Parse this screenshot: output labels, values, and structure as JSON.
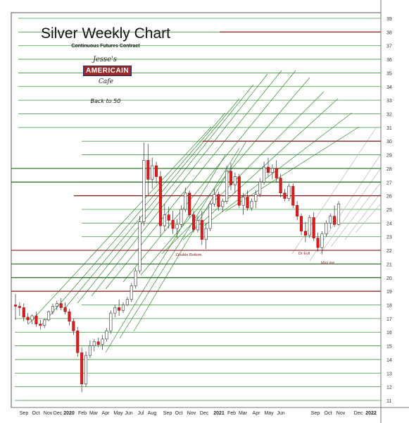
{
  "chart_data": {
    "type": "candlestick",
    "title": "Silver Weekly Chart",
    "subtitle": "Continuous Futures Contract",
    "logo_text": [
      "Jesse's",
      "AMERICAIN",
      "Cafe"
    ],
    "note": "Back to 50",
    "ylim": [
      11,
      39
    ],
    "yticks": [
      11,
      12,
      13,
      14,
      15,
      16,
      17,
      18,
      19,
      20,
      21,
      22,
      23,
      24,
      25,
      26,
      27,
      28,
      29,
      30,
      31,
      32,
      33,
      34,
      35,
      36,
      37,
      38,
      39
    ],
    "xlabels": [
      "Sep",
      "Oct",
      "Nov",
      "Dec",
      "2020",
      "Feb",
      "Mar",
      "Apr",
      "May",
      "Jun",
      "Jul",
      "Aug",
      "Sep",
      "Oct",
      "Nov",
      "Dec",
      "2021",
      "Feb",
      "Mar",
      "Apr",
      "May",
      "Jun",
      "Sep",
      "Oct",
      "Nov",
      "Dec",
      "2022"
    ],
    "annotations": [
      "Double Bottom",
      "Dr Evil",
      "Mini me"
    ],
    "hlines": [
      {
        "y": 38,
        "color": "#8b1a1a"
      },
      {
        "y": 30,
        "color": "#8b1a1a"
      },
      {
        "y": 26,
        "color": "#8b1a1a"
      },
      {
        "y": 22,
        "color": "#8b1a1a"
      },
      {
        "y": 19,
        "color": "#8b1a1a"
      },
      {
        "y": 21,
        "color": "#1f6e1f"
      },
      {
        "y": 20,
        "color": "#1f6e1f"
      },
      {
        "y": 28,
        "color": "#1f6e1f"
      },
      {
        "y": 27,
        "color": "#1f6e1f"
      }
    ],
    "candles": [
      [
        18.0,
        18.8,
        16.9,
        17.9
      ],
      [
        17.9,
        18.2,
        17.2,
        17.8
      ],
      [
        17.8,
        18.1,
        16.8,
        17.1
      ],
      [
        17.1,
        17.4,
        16.6,
        16.9
      ],
      [
        16.9,
        17.3,
        16.6,
        17.2
      ],
      [
        17.2,
        17.5,
        16.4,
        16.6
      ],
      [
        16.6,
        16.9,
        16.2,
        16.5
      ],
      [
        16.5,
        17.0,
        16.3,
        16.9
      ],
      [
        16.9,
        17.6,
        16.8,
        17.5
      ],
      [
        17.5,
        18.1,
        17.3,
        17.9
      ],
      [
        17.9,
        18.3,
        17.6,
        18.1
      ],
      [
        18.1,
        18.5,
        17.6,
        17.8
      ],
      [
        17.8,
        18.2,
        17.3,
        17.5
      ],
      [
        17.5,
        17.7,
        16.5,
        16.8
      ],
      [
        16.8,
        17.0,
        15.8,
        16.1
      ],
      [
        16.1,
        16.4,
        14.2,
        14.5
      ],
      [
        14.5,
        14.9,
        11.6,
        12.2
      ],
      [
        12.2,
        14.6,
        12.0,
        14.3
      ],
      [
        14.3,
        15.4,
        14.1,
        15.0
      ],
      [
        15.0,
        15.5,
        14.6,
        15.3
      ],
      [
        15.3,
        15.6,
        14.9,
        15.1
      ],
      [
        15.1,
        15.8,
        14.7,
        15.5
      ],
      [
        15.5,
        16.3,
        15.3,
        16.1
      ],
      [
        16.1,
        17.6,
        15.9,
        17.4
      ],
      [
        17.4,
        18.0,
        17.1,
        17.8
      ],
      [
        17.8,
        18.4,
        17.2,
        17.6
      ],
      [
        17.6,
        18.2,
        17.4,
        18.0
      ],
      [
        18.0,
        18.6,
        17.9,
        18.4
      ],
      [
        18.4,
        19.6,
        18.2,
        19.4
      ],
      [
        19.4,
        20.7,
        19.2,
        20.5
      ],
      [
        20.5,
        24.5,
        20.3,
        24.1
      ],
      [
        24.1,
        29.9,
        23.8,
        28.6
      ],
      [
        28.6,
        29.8,
        26.1,
        27.2
      ],
      [
        27.2,
        28.8,
        26.5,
        28.2
      ],
      [
        28.2,
        28.5,
        26.9,
        27.4
      ],
      [
        27.4,
        27.8,
        23.0,
        23.8
      ],
      [
        23.8,
        25.4,
        23.4,
        24.6
      ],
      [
        24.6,
        25.2,
        23.6,
        24.2
      ],
      [
        24.2,
        24.9,
        23.2,
        23.6
      ],
      [
        23.6,
        24.3,
        22.9,
        23.9
      ],
      [
        23.9,
        25.3,
        23.7,
        25.0
      ],
      [
        25.0,
        26.6,
        24.8,
        26.2
      ],
      [
        26.2,
        26.4,
        24.4,
        24.6
      ],
      [
        24.6,
        24.9,
        23.3,
        23.5
      ],
      [
        23.5,
        24.5,
        23.3,
        24.2
      ],
      [
        24.2,
        24.9,
        22.4,
        22.8
      ],
      [
        22.8,
        24.0,
        22.1,
        23.6
      ],
      [
        23.6,
        25.6,
        23.4,
        25.4
      ],
      [
        25.4,
        26.5,
        25.2,
        26.1
      ],
      [
        26.1,
        26.3,
        24.9,
        25.2
      ],
      [
        25.2,
        25.8,
        24.8,
        25.6
      ],
      [
        25.6,
        28.2,
        25.4,
        27.8
      ],
      [
        27.8,
        28.4,
        26.4,
        26.8
      ],
      [
        26.8,
        27.7,
        26.2,
        27.4
      ],
      [
        27.4,
        27.6,
        25.1,
        25.3
      ],
      [
        25.3,
        26.2,
        24.6,
        25.9
      ],
      [
        25.9,
        26.4,
        24.9,
        25.1
      ],
      [
        25.1,
        25.8,
        24.9,
        25.6
      ],
      [
        25.6,
        26.4,
        25.1,
        26.1
      ],
      [
        26.1,
        27.3,
        25.9,
        27.0
      ],
      [
        27.0,
        28.5,
        26.8,
        28.1
      ],
      [
        28.1,
        28.8,
        27.4,
        27.7
      ],
      [
        27.7,
        28.3,
        27.2,
        28.0
      ],
      [
        28.0,
        28.6,
        27.0,
        27.3
      ],
      [
        27.3,
        27.6,
        25.9,
        26.2
      ],
      [
        26.2,
        26.5,
        25.6,
        25.8
      ],
      [
        25.8,
        26.9,
        25.6,
        26.7
      ],
      [
        26.7,
        26.9,
        25.1,
        25.3
      ],
      [
        25.3,
        25.6,
        24.2,
        24.5
      ],
      [
        24.5,
        24.7,
        23.1,
        23.4
      ],
      [
        23.4,
        24.1,
        22.6,
        23.1
      ],
      [
        23.1,
        24.6,
        22.9,
        24.4
      ],
      [
        24.4,
        24.8,
        22.7,
        22.9
      ],
      [
        22.9,
        23.3,
        21.9,
        22.2
      ],
      [
        22.2,
        23.4,
        21.7,
        23.2
      ],
      [
        23.2,
        24.2,
        23.0,
        24.0
      ],
      [
        24.0,
        24.7,
        23.6,
        24.5
      ],
      [
        24.5,
        25.3,
        23.7,
        23.9
      ],
      [
        23.9,
        25.6,
        23.8,
        25.4
      ]
    ]
  }
}
